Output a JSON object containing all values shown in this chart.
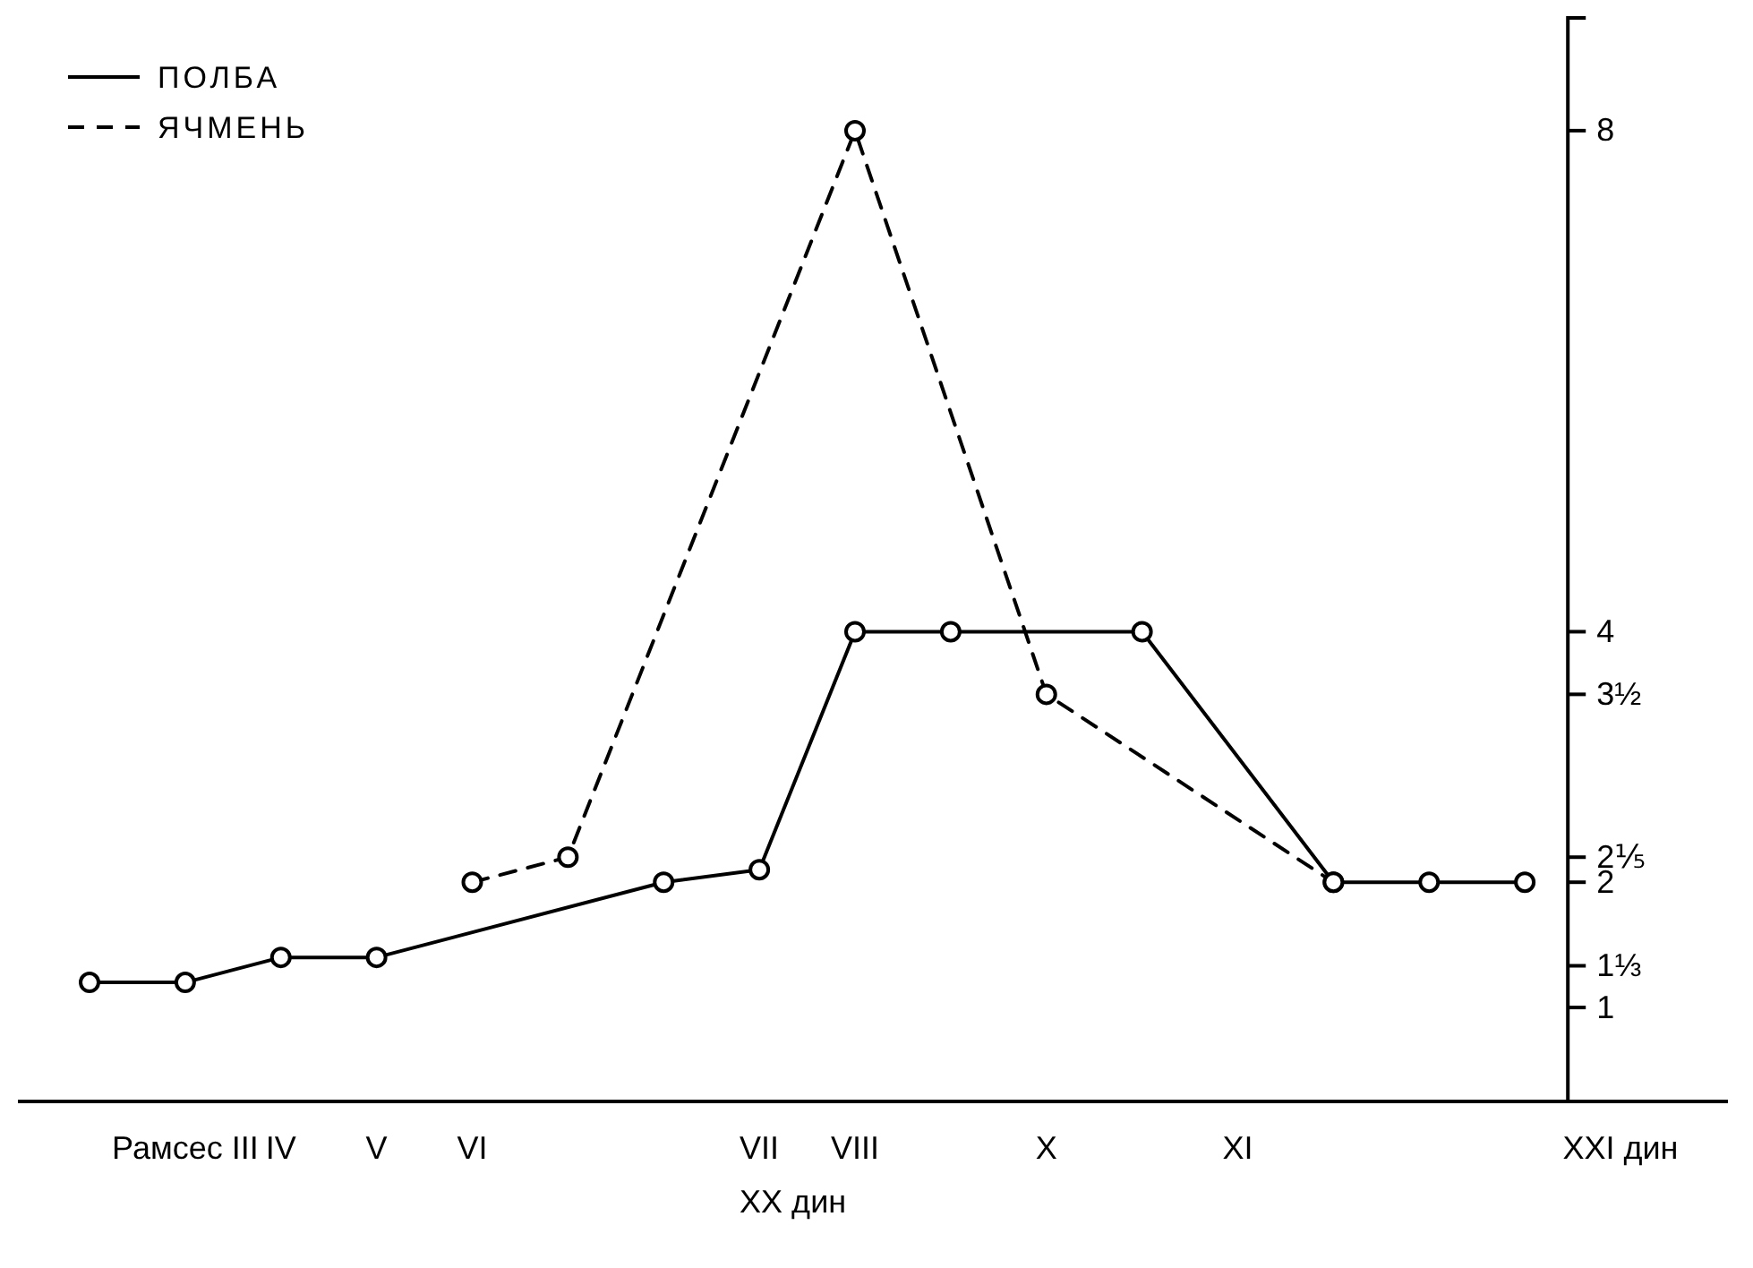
{
  "chart_data": {
    "type": "line",
    "xlabel": "XX дин",
    "categories": [
      null,
      "Рамсес III",
      "IV",
      "V",
      "VI",
      null,
      null,
      "VII",
      "VIII",
      null,
      "X",
      null,
      "XI",
      null,
      null,
      null,
      "XXI дин"
    ],
    "ylim": [
      0.25,
      8.9
    ],
    "yticks": [
      1,
      {
        "value": 1.333,
        "label": "1⅓"
      },
      2,
      {
        "value": 2.2,
        "label": "2⅕"
      },
      {
        "value": 3.5,
        "label": "3½"
      },
      4,
      8
    ],
    "legend": "top left",
    "marker": "circle",
    "series": [
      {
        "name": "ПОЛБА",
        "color": "#000000",
        "line_style": "solid",
        "values": [
          1.2,
          1.2,
          1.4,
          1.4,
          null,
          null,
          2,
          2.1,
          4,
          4,
          null,
          4,
          null,
          2,
          2,
          2,
          null
        ]
      },
      {
        "name": "ЯЧМЕНЬ",
        "color": "#000000",
        "line_style": "dashed",
        "values": [
          null,
          null,
          null,
          null,
          2,
          2.2,
          null,
          null,
          8,
          null,
          3.5,
          null,
          null,
          2,
          null,
          null,
          null
        ]
      }
    ]
  }
}
